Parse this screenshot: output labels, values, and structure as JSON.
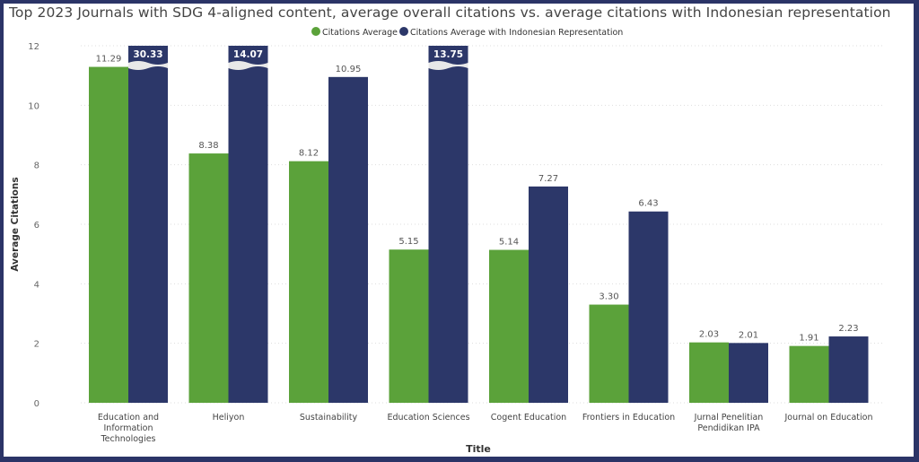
{
  "chart_data": {
    "type": "bar",
    "title": "Top 2023 Journals with SDG 4-aligned content, average overall citations vs. average citations with Indonesian representation",
    "xlabel": "Title",
    "ylabel": "Average Citations",
    "ylim": [
      0,
      12
    ],
    "yticks": [
      0,
      2,
      4,
      6,
      8,
      10,
      12
    ],
    "grid": true,
    "legend_position": "top-center",
    "categories": [
      [
        "Education and",
        "Information",
        "Technologies"
      ],
      [
        "Heliyon"
      ],
      [
        "Sustainability"
      ],
      [
        "Education Sciences"
      ],
      [
        "Cogent Education"
      ],
      [
        "Frontiers in Education"
      ],
      [
        "Jurnal Penelitian",
        "Pendidikan IPA"
      ],
      [
        "Journal on Education"
      ]
    ],
    "series": [
      {
        "name": "Citations Average",
        "color": "#5ba23a",
        "values": [
          11.29,
          8.38,
          8.12,
          5.15,
          5.14,
          3.3,
          2.03,
          1.91
        ],
        "labels": [
          "11.29",
          "8.38",
          "8.12",
          "5.15",
          "5.14",
          "3.30",
          "2.03",
          "1.91"
        ]
      },
      {
        "name": "Citations Average with Indonesian Representation",
        "color": "#2c3769",
        "values": [
          30.33,
          14.07,
          10.95,
          13.75,
          7.27,
          6.43,
          2.01,
          2.23
        ],
        "labels": [
          "30.33",
          "14.07",
          "10.95",
          "13.75",
          "7.27",
          "6.43",
          "2.01",
          "2.23"
        ]
      }
    ],
    "axis_break": true
  }
}
